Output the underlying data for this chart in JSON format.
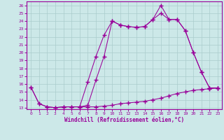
{
  "xlabel": "Windchill (Refroidissement éolien,°C)",
  "bg_color": "#cce8e8",
  "line_color": "#990099",
  "grid_color": "#aacccc",
  "xlim_min": -0.5,
  "xlim_max": 23.5,
  "ylim_min": 12.8,
  "ylim_max": 26.5,
  "yticks": [
    13,
    14,
    15,
    16,
    17,
    18,
    19,
    20,
    21,
    22,
    23,
    24,
    25,
    26
  ],
  "xticks": [
    0,
    1,
    2,
    3,
    4,
    5,
    6,
    7,
    8,
    9,
    10,
    11,
    12,
    13,
    14,
    15,
    16,
    17,
    18,
    19,
    20,
    21,
    22,
    23
  ],
  "s1_x": [
    0,
    1,
    2,
    3,
    4,
    5,
    6,
    7,
    8,
    9,
    10,
    11,
    12,
    13,
    14,
    15,
    16,
    17,
    18,
    19,
    20,
    21,
    22,
    23
  ],
  "s1_y": [
    15.6,
    13.5,
    13.1,
    13.0,
    13.1,
    13.1,
    13.1,
    13.1,
    13.1,
    13.2,
    13.3,
    13.5,
    13.6,
    13.7,
    13.8,
    14.0,
    14.2,
    14.5,
    14.8,
    15.0,
    15.2,
    15.3,
    15.4,
    15.5
  ],
  "s2_x": [
    0,
    1,
    2,
    3,
    4,
    5,
    6,
    7,
    8,
    9,
    10,
    11,
    12,
    13,
    14,
    15,
    16,
    17,
    18,
    19,
    20,
    21,
    22,
    23
  ],
  "s2_y": [
    15.6,
    13.5,
    13.1,
    13.0,
    13.1,
    13.1,
    13.1,
    13.3,
    16.5,
    19.5,
    24.0,
    23.5,
    23.3,
    23.2,
    23.3,
    24.2,
    26.0,
    24.2,
    24.2,
    22.8,
    20.0,
    17.5,
    15.5,
    15.5
  ],
  "s3_x": [
    6,
    7,
    8,
    9,
    10,
    11,
    12,
    13,
    14,
    15,
    16,
    17,
    18,
    19,
    20,
    21,
    22,
    23
  ],
  "s3_y": [
    13.1,
    16.3,
    19.5,
    22.2,
    24.0,
    23.5,
    23.3,
    23.2,
    23.3,
    24.2,
    25.0,
    24.2,
    24.2,
    22.8,
    20.0,
    17.5,
    15.5,
    15.5
  ]
}
